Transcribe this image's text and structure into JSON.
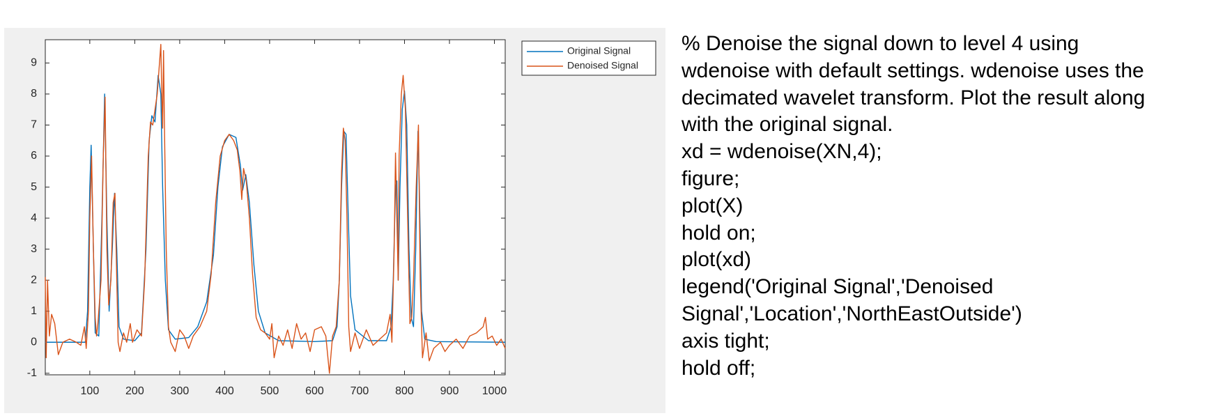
{
  "chart_data": {
    "type": "line",
    "xlim": [
      1,
      1024
    ],
    "ylim": [
      -1.05,
      9.75
    ],
    "xticks": [
      100,
      200,
      300,
      400,
      500,
      600,
      700,
      800,
      900,
      1000
    ],
    "yticks": [
      -1,
      0,
      1,
      2,
      3,
      4,
      5,
      6,
      7,
      8,
      9
    ],
    "grid": false,
    "legend": "northeastoutside",
    "series": [
      {
        "name": "Original Signal",
        "color": "#0072bd",
        "x": [
          1,
          90,
          95,
          100,
          103,
          108,
          112,
          120,
          127,
          133,
          138,
          143,
          150,
          155,
          160,
          165,
          175,
          200,
          215,
          225,
          232,
          238,
          245,
          252,
          258,
          262,
          268,
          275,
          290,
          320,
          340,
          360,
          375,
          385,
          395,
          410,
          425,
          435,
          440,
          447,
          455,
          465,
          475,
          490,
          520,
          600,
          640,
          650,
          655,
          660,
          665,
          670,
          675,
          680,
          690,
          720,
          760,
          770,
          775,
          780,
          783,
          786,
          790,
          795,
          800,
          805,
          810,
          815,
          820,
          825,
          830,
          833,
          838,
          845,
          870,
          1024
        ],
        "values": [
          0,
          0,
          1,
          5,
          6.35,
          3,
          0.3,
          0.2,
          4,
          8,
          4,
          1,
          3,
          4.8,
          3,
          0.5,
          0.1,
          0.05,
          0.3,
          3,
          6.5,
          7.3,
          7.1,
          8.6,
          8,
          5,
          2,
          0.4,
          0.1,
          0.15,
          0.5,
          1.3,
          2.8,
          5,
          6.3,
          6.7,
          6.6,
          5.7,
          4.9,
          5.4,
          4.5,
          2.5,
          1,
          0.3,
          0.05,
          0.02,
          0.05,
          0.5,
          2,
          5,
          6.8,
          6.7,
          4,
          1.5,
          0.4,
          0.05,
          0.05,
          0.5,
          2,
          5,
          5.2,
          2,
          5,
          7.5,
          8.1,
          7,
          3,
          0.8,
          0.5,
          3,
          6.8,
          5,
          1,
          0.1,
          0.02,
          0
        ]
      },
      {
        "name": "Denoised Signal",
        "color": "#d95319",
        "x": [
          1,
          3,
          6,
          10,
          15,
          22,
          30,
          40,
          55,
          70,
          80,
          88,
          92,
          97,
          100,
          104,
          108,
          112,
          115,
          118,
          125,
          130,
          134,
          138,
          142,
          147,
          152,
          156,
          160,
          163,
          167,
          175,
          182,
          190,
          195,
          205,
          215,
          222,
          230,
          235,
          240,
          245,
          250,
          254,
          258,
          260,
          262,
          264,
          266,
          270,
          275,
          280,
          290,
          300,
          310,
          320,
          330,
          345,
          360,
          370,
          380,
          390,
          400,
          410,
          420,
          428,
          434,
          438,
          442,
          448,
          455,
          462,
          470,
          480,
          490,
          500,
          505,
          510,
          520,
          530,
          540,
          550,
          560,
          570,
          580,
          590,
          600,
          615,
          625,
          633,
          640,
          648,
          655,
          660,
          664,
          668,
          672,
          676,
          680,
          690,
          700,
          715,
          730,
          745,
          760,
          768,
          772,
          777,
          780,
          783,
          786,
          788,
          793,
          797,
          802,
          807,
          812,
          816,
          820,
          826,
          831,
          835,
          840,
          848,
          855,
          865,
          880,
          890,
          900,
          915,
          930,
          945,
          960,
          975,
          980,
          985,
          995,
          1005,
          1015,
          1024
        ],
        "values": [
          2.1,
          -0.5,
          2,
          0.2,
          0.9,
          0.6,
          -0.4,
          0,
          0.1,
          0,
          -0.1,
          0.5,
          -0.2,
          1,
          4,
          6,
          3,
          0.8,
          0.2,
          0.6,
          2,
          6,
          7.9,
          3,
          1.2,
          2,
          4.5,
          4.8,
          2,
          0,
          -0.3,
          0.3,
          0,
          0.6,
          0,
          0.4,
          0.2,
          2,
          6,
          7.1,
          7,
          7.5,
          8,
          8.8,
          9.6,
          8,
          6.9,
          9.4,
          7,
          3,
          0.5,
          0,
          -0.3,
          0.4,
          0.2,
          -0.2,
          0.2,
          0.5,
          1,
          2.2,
          4.5,
          6,
          6.5,
          6.7,
          6.5,
          6.2,
          5.5,
          4.6,
          5.6,
          5.2,
          4,
          2.2,
          0.8,
          0.4,
          0.3,
          0.1,
          0.6,
          -0.5,
          0.2,
          -0.1,
          0.4,
          -0.2,
          0.6,
          0.1,
          0.3,
          -0.3,
          0.4,
          0.5,
          0.2,
          -1,
          0.2,
          0.5,
          2,
          5.5,
          6.9,
          6.5,
          4,
          0.5,
          -0.3,
          0.3,
          -0.2,
          0.4,
          -0.1,
          0.1,
          0.3,
          0.9,
          0,
          3,
          6.1,
          4,
          2,
          6,
          8,
          8.6,
          7.5,
          4,
          0.6,
          0.8,
          2,
          5,
          7,
          2,
          -0.5,
          0.3,
          -0.6,
          -0.2,
          0,
          -0.3,
          -0.1,
          0.1,
          -0.2,
          0.2,
          0.3,
          0.5,
          0.8,
          0.1,
          0.2,
          -0.1,
          0.1,
          -0.2
        ]
      }
    ]
  },
  "text": {
    "lines": [
      "% Denoise the signal down to level 4 using",
      "wdenoise with default settings. wdenoise uses the",
      "decimated wavelet transform. Plot the result along",
      "with the original signal.",
      "xd = wdenoise(XN,4);",
      "figure;",
      "plot(X)",
      "hold on;",
      "plot(xd)",
      "legend('Original Signal','Denoised",
      "Signal','Location','NorthEastOutside')",
      "axis tight;",
      "hold off;"
    ]
  }
}
